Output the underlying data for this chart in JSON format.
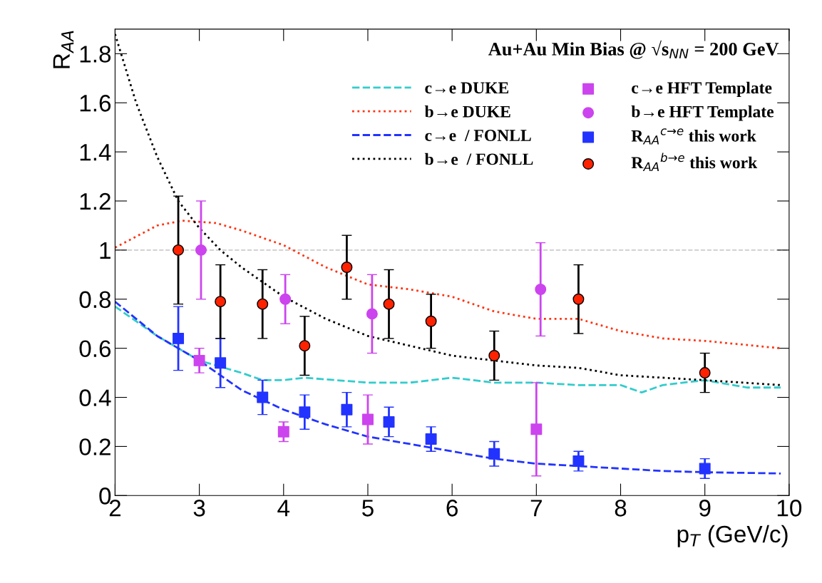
{
  "chart_data": {
    "type": "line",
    "xlabel": "p$_{T}$ (GeV/c)",
    "ylabel": "R$_{AA}$",
    "annotations": [
      "Au+Au Min Bias @ √s$_{NN}$ = 200 GeV"
    ],
    "xlim": [
      2,
      10
    ],
    "xticks": [
      2,
      3,
      4,
      5,
      6,
      7,
      8,
      9,
      10
    ],
    "ylim": [
      0,
      1.9
    ],
    "yticks": [
      0,
      0.2,
      0.4,
      0.6,
      0.8,
      1,
      1.2,
      1.4,
      1.6,
      1.8
    ],
    "ref_lines": [
      {
        "axis": "y",
        "value": 1,
        "label": null,
        "color": "#cccccc",
        "line_style": "dashed"
      }
    ],
    "legend": "top right",
    "grid": false,
    "marker": "none",
    "series": [
      {
        "name": "c→e DUKE",
        "color": "#33cccc",
        "line_style": "dashed",
        "x": [
          2,
          2.5,
          3,
          3.5,
          3.75,
          4,
          4.25,
          5,
          5.5,
          6,
          6.5,
          7,
          7.5,
          8,
          8.25,
          8.5,
          9,
          9.5,
          9.9
        ],
        "values": [
          0.77,
          0.65,
          0.55,
          0.5,
          0.47,
          0.47,
          0.48,
          0.46,
          0.46,
          0.48,
          0.46,
          0.46,
          0.45,
          0.45,
          0.42,
          0.45,
          0.47,
          0.44,
          0.44
        ]
      },
      {
        "name": "b→e DUKE",
        "color": "#ff3311",
        "line_style": "dotted",
        "x": [
          2,
          2.5,
          2.8,
          3.2,
          3.5,
          4,
          4.5,
          5,
          5.5,
          6,
          6.5,
          7,
          7.5,
          8,
          8.5,
          9,
          9.9
        ],
        "values": [
          1.01,
          1.1,
          1.12,
          1.11,
          1.08,
          1.02,
          0.93,
          0.86,
          0.84,
          0.81,
          0.75,
          0.72,
          0.72,
          0.67,
          0.64,
          0.63,
          0.6
        ]
      },
      {
        "name": "c→e  / FONLL",
        "color": "#2233ff",
        "line_style": "dashed",
        "x": [
          2,
          2.5,
          3,
          3.5,
          4,
          4.5,
          5,
          5.5,
          6,
          6.5,
          7,
          7.5,
          8,
          8.5,
          9,
          9.9
        ],
        "values": [
          0.79,
          0.65,
          0.55,
          0.43,
          0.35,
          0.29,
          0.24,
          0.21,
          0.18,
          0.15,
          0.13,
          0.12,
          0.11,
          0.1,
          0.095,
          0.09
        ]
      },
      {
        "name": "b→e  / FONLL",
        "color": "#000000",
        "line_style": "dotted",
        "x": [
          2,
          2.25,
          2.5,
          2.75,
          3,
          3.25,
          3.5,
          4,
          4.5,
          5,
          5.5,
          6,
          6.5,
          7,
          7.5,
          8,
          8.5,
          9,
          9.9
        ],
        "values": [
          1.88,
          1.6,
          1.38,
          1.2,
          1.09,
          1.0,
          0.93,
          0.81,
          0.72,
          0.65,
          0.61,
          0.57,
          0.55,
          0.53,
          0.52,
          0.49,
          0.48,
          0.47,
          0.45
        ]
      },
      {
        "name": "c→e HFT Template",
        "type": "scatter",
        "marker": "square",
        "color": "#cc44ee",
        "x": [
          3,
          4,
          5,
          7
        ],
        "values": [
          0.55,
          0.26,
          0.31,
          0.27
        ],
        "errors": [
          0.05,
          0.04,
          0.1,
          0.19
        ]
      },
      {
        "name": "b→e HFT Template",
        "type": "scatter",
        "marker": "circle",
        "color": "#cc44ee",
        "x": [
          3.02,
          4.02,
          5.05,
          7.05
        ],
        "values": [
          1.0,
          0.8,
          0.74,
          0.84
        ],
        "errors": [
          0.2,
          0.1,
          0.16,
          0.19
        ]
      },
      {
        "name": "R$_{AA}$$^{c→e}$ this work",
        "type": "scatter",
        "marker": "square",
        "color": "#2233ff",
        "x": [
          2.75,
          3.25,
          3.75,
          4.25,
          4.75,
          5.25,
          5.75,
          6.5,
          7.5,
          9
        ],
        "values": [
          0.64,
          0.54,
          0.4,
          0.34,
          0.35,
          0.3,
          0.23,
          0.17,
          0.14,
          0.11
        ],
        "errors": [
          0.13,
          0.1,
          0.07,
          0.07,
          0.07,
          0.06,
          0.05,
          0.05,
          0.04,
          0.04
        ]
      },
      {
        "name": "R$_{AA}$$^{b→e}$ this work",
        "type": "scatter",
        "marker": "circle",
        "color": "#ff2200",
        "x": [
          2.75,
          3.25,
          3.75,
          4.25,
          4.75,
          5.25,
          5.75,
          6.5,
          7.5,
          9
        ],
        "values": [
          1.0,
          0.79,
          0.78,
          0.61,
          0.93,
          0.78,
          0.71,
          0.57,
          0.8,
          0.5
        ],
        "errors": [
          0.22,
          0.15,
          0.14,
          0.12,
          0.13,
          0.14,
          0.11,
          0.1,
          0.14,
          0.08
        ]
      }
    ]
  }
}
